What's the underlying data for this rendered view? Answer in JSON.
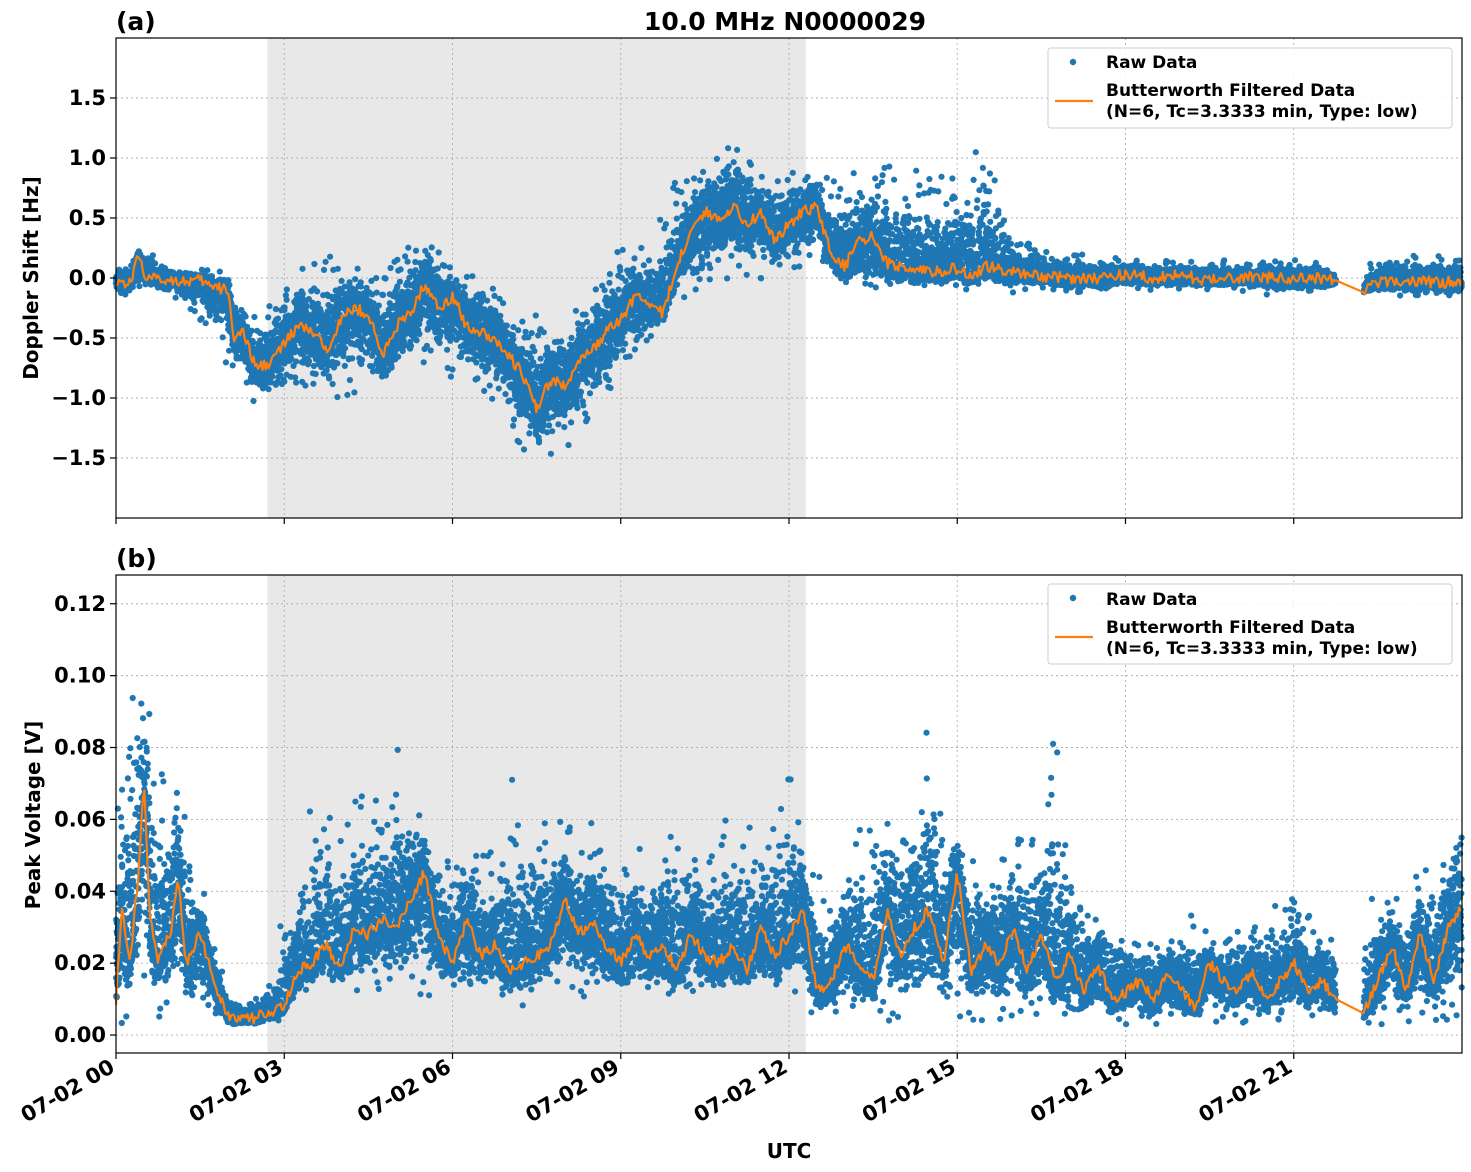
{
  "chart_data": [
    {
      "type": "scatter",
      "panel_label": "(a)",
      "title": "10.0 MHz N0000029",
      "ylabel": "Doppler Shift [Hz]",
      "xlabel": "",
      "xlim": [
        0,
        24
      ],
      "ylim": [
        -2.0,
        2.0
      ],
      "yticks": [
        -1.5,
        -1.0,
        -0.5,
        0.0,
        0.5,
        1.0,
        1.5
      ],
      "ytick_labels": [
        "−1.5",
        "−1.0",
        "−0.5",
        "0.0",
        "0.5",
        "1.0",
        "1.5"
      ],
      "grid": true,
      "shaded_region_hours": [
        2.7,
        12.3
      ],
      "legend": {
        "placement": "top-right",
        "entries": [
          {
            "label": "Raw Data",
            "marker": "dot"
          },
          {
            "label_line1": "Butterworth Filtered Data",
            "label_line2": "(N=6, Tc=3.3333 min, Type: low)",
            "marker": "line"
          }
        ]
      },
      "gap_hours": [
        21.75,
        22.25
      ],
      "series": [
        {
          "name": "Butterworth Filtered Data",
          "color": "#ff7f0e",
          "x": [
            0,
            0.25,
            0.4,
            0.5,
            0.75,
            1,
            1.25,
            1.5,
            1.75,
            2,
            2.1,
            2.25,
            2.5,
            2.75,
            3,
            3.25,
            3.5,
            3.75,
            4,
            4.25,
            4.5,
            4.75,
            5,
            5.25,
            5.5,
            5.75,
            6,
            6.25,
            6.5,
            6.75,
            7,
            7.25,
            7.5,
            7.75,
            8,
            8.25,
            8.5,
            8.75,
            9,
            9.25,
            9.5,
            9.75,
            10,
            10.25,
            10.5,
            10.75,
            11,
            11.25,
            11.5,
            11.75,
            12,
            12.25,
            12.5,
            12.75,
            13,
            13.25,
            13.5,
            13.75,
            14,
            14.5,
            15,
            15.25,
            15.5,
            16,
            16.5,
            17,
            17.5,
            18,
            18.5,
            19,
            19.5,
            20,
            20.5,
            21,
            21.5,
            21.75,
            22.25,
            22.5,
            23,
            23.5,
            24
          ],
          "y": [
            -0.02,
            -0.05,
            0.2,
            0.03,
            -0.02,
            -0.01,
            -0.03,
            -0.02,
            -0.08,
            -0.1,
            -0.5,
            -0.45,
            -0.75,
            -0.7,
            -0.55,
            -0.4,
            -0.45,
            -0.6,
            -0.35,
            -0.25,
            -0.3,
            -0.65,
            -0.4,
            -0.3,
            -0.05,
            -0.25,
            -0.15,
            -0.4,
            -0.45,
            -0.5,
            -0.65,
            -0.8,
            -1.1,
            -0.85,
            -0.9,
            -0.7,
            -0.6,
            -0.45,
            -0.35,
            -0.15,
            -0.2,
            -0.3,
            0.1,
            0.4,
            0.55,
            0.5,
            0.6,
            0.45,
            0.55,
            0.3,
            0.45,
            0.55,
            0.6,
            0.2,
            0.1,
            0.3,
            0.35,
            0.12,
            0.1,
            0.05,
            0.08,
            0.0,
            0.1,
            0.05,
            0.02,
            0.0,
            0.0,
            0.03,
            0.0,
            0.02,
            -0.02,
            0.0,
            0.01,
            -0.01,
            0.0,
            -0.02,
            -0.12,
            -0.03,
            -0.03,
            -0.03,
            -0.04
          ]
        },
        {
          "name": "Raw Data",
          "color": "#1f77b4",
          "x": [
            0,
            0.5,
            1,
            1.5,
            2,
            2.5,
            3,
            3.5,
            4,
            4.5,
            5,
            5.5,
            6,
            6.5,
            7,
            7.5,
            8,
            8.5,
            9,
            9.5,
            10,
            10.5,
            11,
            11.5,
            12,
            12.5,
            13,
            13.5,
            14,
            14.5,
            15,
            15.5,
            16,
            16.5,
            17,
            17.5,
            18,
            18.5,
            19,
            19.5,
            20,
            20.5,
            21,
            21.5,
            21.75,
            22.25,
            22.5,
            23,
            23.5,
            24
          ],
          "upper": [
            0.08,
            0.28,
            0.1,
            0.08,
            0.05,
            -0.35,
            0.05,
            0.15,
            0.2,
            0.1,
            0.15,
            0.45,
            0.1,
            0.05,
            -0.25,
            -0.25,
            -0.35,
            -0.05,
            0.3,
            0.3,
            0.85,
            1.0,
            1.25,
            0.95,
            0.9,
            0.95,
            0.95,
            0.85,
            1.05,
            0.85,
            0.9,
            1.25,
            0.35,
            0.25,
            0.2,
            0.2,
            0.18,
            0.15,
            0.15,
            0.15,
            0.15,
            0.15,
            0.15,
            0.12,
            0.05,
            0.05,
            0.22,
            0.18,
            0.2,
            0.15
          ],
          "lower": [
            -0.2,
            -0.1,
            -0.15,
            -0.35,
            -0.75,
            -1.1,
            -1.0,
            -0.95,
            -1.0,
            -1.0,
            -0.9,
            -0.75,
            -0.85,
            -0.95,
            -1.25,
            -1.6,
            -1.45,
            -1.2,
            -0.8,
            -0.6,
            -0.2,
            -0.15,
            0.0,
            -0.05,
            0.05,
            0.15,
            -0.15,
            -0.12,
            -0.12,
            -0.12,
            -0.1,
            -0.12,
            -0.12,
            -0.1,
            -0.12,
            -0.12,
            -0.1,
            -0.1,
            -0.12,
            -0.1,
            -0.1,
            -0.15,
            -0.12,
            -0.12,
            -0.08,
            -0.1,
            -0.15,
            -0.15,
            -0.2,
            -0.15
          ]
        }
      ]
    },
    {
      "type": "scatter",
      "panel_label": "(b)",
      "title": "",
      "ylabel": "Peak Voltage [V]",
      "xlabel": "UTC",
      "xlim": [
        0,
        24
      ],
      "ylim": [
        -0.005,
        0.128
      ],
      "yticks": [
        0.0,
        0.02,
        0.04,
        0.06,
        0.08,
        0.1,
        0.12
      ],
      "ytick_labels": [
        "0.00",
        "0.02",
        "0.04",
        "0.06",
        "0.08",
        "0.10",
        "0.12"
      ],
      "xticks": [
        0,
        3,
        6,
        9,
        12,
        15,
        18,
        21
      ],
      "xtick_labels": [
        "07-02 00",
        "07-02 03",
        "07-02 06",
        "07-02 09",
        "07-02 12",
        "07-02 15",
        "07-02 18",
        "07-02 21"
      ],
      "grid": true,
      "shaded_region_hours": [
        2.7,
        12.3
      ],
      "legend": {
        "placement": "top-right",
        "entries": [
          {
            "label": "Raw Data",
            "marker": "dot"
          },
          {
            "label_line1": "Butterworth Filtered Data",
            "label_line2": "(N=6, Tc=3.3333 min, Type: low)",
            "marker": "line"
          }
        ]
      },
      "gap_hours": [
        21.75,
        22.25
      ],
      "series": [
        {
          "name": "Butterworth Filtered Data",
          "color": "#ff7f0e",
          "x": [
            0,
            0.1,
            0.25,
            0.4,
            0.5,
            0.6,
            0.75,
            1,
            1.1,
            1.25,
            1.5,
            1.75,
            2,
            2.25,
            2.5,
            2.75,
            3,
            3.25,
            3.5,
            3.75,
            4,
            4.25,
            4.5,
            4.75,
            5,
            5.25,
            5.5,
            5.75,
            6,
            6.25,
            6.5,
            6.75,
            7,
            7.25,
            7.5,
            7.75,
            8,
            8.25,
            8.5,
            8.75,
            9,
            9.25,
            9.5,
            9.75,
            10,
            10.25,
            10.5,
            10.75,
            11,
            11.25,
            11.5,
            11.75,
            12,
            12.25,
            12.5,
            12.75,
            13,
            13.25,
            13.5,
            13.75,
            14,
            14.25,
            14.5,
            14.75,
            15,
            15.25,
            15.5,
            15.75,
            16,
            16.25,
            16.5,
            16.75,
            17,
            17.25,
            17.5,
            17.75,
            18,
            18.25,
            18.5,
            18.75,
            19,
            19.25,
            19.5,
            19.75,
            20,
            20.25,
            20.5,
            20.75,
            21,
            21.25,
            21.5,
            21.75,
            22.25,
            22.5,
            22.75,
            23,
            23.25,
            23.5,
            23.75,
            24
          ],
          "y": [
            0.01,
            0.035,
            0.02,
            0.045,
            0.07,
            0.035,
            0.02,
            0.03,
            0.045,
            0.02,
            0.028,
            0.015,
            0.005,
            0.004,
            0.005,
            0.006,
            0.008,
            0.018,
            0.02,
            0.025,
            0.018,
            0.03,
            0.028,
            0.032,
            0.03,
            0.038,
            0.045,
            0.028,
            0.02,
            0.032,
            0.022,
            0.025,
            0.018,
            0.02,
            0.022,
            0.025,
            0.038,
            0.028,
            0.032,
            0.025,
            0.02,
            0.028,
            0.022,
            0.025,
            0.018,
            0.028,
            0.022,
            0.02,
            0.025,
            0.018,
            0.03,
            0.022,
            0.028,
            0.035,
            0.012,
            0.015,
            0.025,
            0.02,
            0.015,
            0.035,
            0.022,
            0.03,
            0.035,
            0.02,
            0.045,
            0.018,
            0.025,
            0.02,
            0.03,
            0.018,
            0.028,
            0.015,
            0.022,
            0.012,
            0.02,
            0.01,
            0.012,
            0.015,
            0.01,
            0.018,
            0.012,
            0.008,
            0.02,
            0.015,
            0.012,
            0.018,
            0.01,
            0.015,
            0.02,
            0.012,
            0.015,
            0.01,
            0.006,
            0.015,
            0.025,
            0.012,
            0.028,
            0.015,
            0.03,
            0.035
          ]
        },
        {
          "name": "Raw Data",
          "color": "#1f77b4",
          "x": [
            0,
            0.25,
            0.4,
            0.5,
            0.75,
            1,
            1.25,
            1.5,
            1.75,
            2,
            2.25,
            2.5,
            2.75,
            3,
            3.25,
            3.5,
            3.75,
            4,
            4.25,
            4.5,
            4.75,
            5,
            5.25,
            5.5,
            5.75,
            6,
            6.25,
            6.5,
            6.75,
            7,
            7.25,
            7.5,
            7.75,
            8,
            8.25,
            8.5,
            8.75,
            9,
            9.25,
            9.5,
            9.75,
            10,
            10.25,
            10.5,
            10.75,
            11,
            11.25,
            11.5,
            11.75,
            12,
            12.25,
            12.5,
            12.75,
            13,
            13.25,
            13.5,
            13.75,
            14,
            14.25,
            14.5,
            14.75,
            15,
            15.25,
            15.5,
            15.75,
            16,
            16.25,
            16.5,
            16.75,
            17,
            17.25,
            17.5,
            17.75,
            18,
            18.25,
            18.5,
            18.75,
            19,
            19.25,
            19.5,
            19.75,
            20,
            20.25,
            20.5,
            20.75,
            21,
            21.25,
            21.5,
            21.75,
            22.25,
            22.5,
            22.75,
            23,
            23.25,
            23.5,
            23.75,
            24
          ],
          "upper": [
            0.06,
            0.09,
            0.12,
            0.1,
            0.08,
            0.09,
            0.065,
            0.045,
            0.025,
            0.012,
            0.01,
            0.012,
            0.015,
            0.04,
            0.05,
            0.065,
            0.08,
            0.06,
            0.065,
            0.07,
            0.075,
            0.085,
            0.07,
            0.06,
            0.055,
            0.05,
            0.06,
            0.055,
            0.05,
            0.075,
            0.065,
            0.06,
            0.06,
            0.065,
            0.06,
            0.06,
            0.06,
            0.05,
            0.055,
            0.05,
            0.055,
            0.06,
            0.055,
            0.05,
            0.065,
            0.065,
            0.06,
            0.06,
            0.065,
            0.075,
            0.06,
            0.045,
            0.04,
            0.05,
            0.06,
            0.065,
            0.07,
            0.07,
            0.075,
            0.09,
            0.065,
            0.065,
            0.05,
            0.05,
            0.05,
            0.06,
            0.06,
            0.055,
            0.09,
            0.05,
            0.045,
            0.035,
            0.04,
            0.03,
            0.03,
            0.025,
            0.025,
            0.03,
            0.035,
            0.03,
            0.025,
            0.03,
            0.03,
            0.04,
            0.035,
            0.045,
            0.035,
            0.035,
            0.025,
            0.035,
            0.04,
            0.04,
            0.04,
            0.05,
            0.05,
            0.06,
            0.07
          ],
          "lower": [
            0.002,
            0.004,
            0.01,
            0.008,
            0.005,
            0.006,
            0.005,
            0.004,
            0.003,
            0.002,
            0.002,
            0.002,
            0.003,
            0.004,
            0.008,
            0.01,
            0.012,
            0.012,
            0.01,
            0.012,
            0.012,
            0.015,
            0.012,
            0.01,
            0.01,
            0.01,
            0.008,
            0.01,
            0.01,
            0.008,
            0.008,
            0.01,
            0.012,
            0.012,
            0.01,
            0.01,
            0.008,
            0.01,
            0.008,
            0.01,
            0.008,
            0.01,
            0.008,
            0.01,
            0.01,
            0.008,
            0.01,
            0.01,
            0.01,
            0.01,
            0.005,
            0.003,
            0.004,
            0.004,
            0.005,
            0.005,
            0.004,
            0.004,
            0.004,
            0.003,
            0.004,
            0.003,
            0.003,
            0.004,
            0.003,
            0.003,
            0.003,
            0.003,
            0.003,
            0.003,
            0.003,
            0.002,
            0.003,
            0.003,
            0.003,
            0.002,
            0.002,
            0.003,
            0.003,
            0.002,
            0.003,
            0.003,
            0.003,
            0.003,
            0.002,
            0.003,
            0.003,
            0.003,
            0.003,
            0.003,
            0.003,
            0.003,
            0.002,
            0.003,
            0.003,
            0.002,
            0.002
          ]
        }
      ]
    }
  ]
}
